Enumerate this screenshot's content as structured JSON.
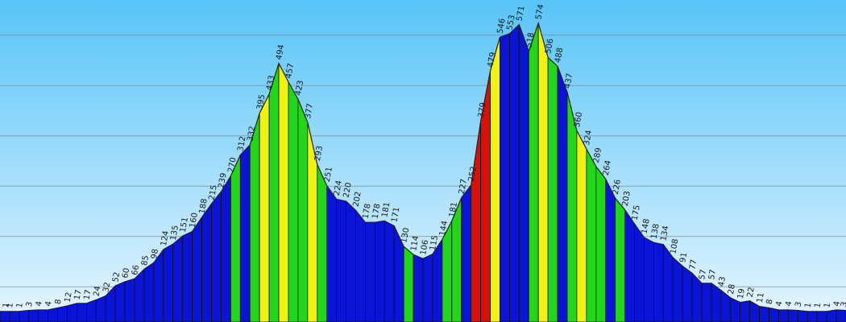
{
  "chart_data": {
    "type": "area",
    "title": "",
    "xlabel": "",
    "ylabel": "",
    "ylim": [
      -20,
      620
    ],
    "gridlines": [
      50,
      150,
      250,
      350,
      450,
      550
    ],
    "grid": true,
    "legend": "none",
    "colors": {
      "background_top": "#58c4f7",
      "background_bottom": "#e6f5ff",
      "grid": "#7f8e99",
      "low": "#0a14d6",
      "green": "#22d619",
      "yellow": "#f2f20f",
      "red": "#d9100a"
    },
    "points": [
      {
        "value": 1,
        "label": "1",
        "color": "low"
      },
      {
        "value": 1,
        "label": "1",
        "color": "low"
      },
      {
        "value": 1,
        "label": "1",
        "color": "low"
      },
      {
        "value": 3,
        "label": "3",
        "color": "low"
      },
      {
        "value": 4,
        "label": "4",
        "color": "low"
      },
      {
        "value": 4,
        "label": "4",
        "color": "low"
      },
      {
        "value": 8,
        "label": "8",
        "color": "low"
      },
      {
        "value": 12,
        "label": "12",
        "color": "low"
      },
      {
        "value": 17,
        "label": "17",
        "color": "low"
      },
      {
        "value": 17,
        "label": "17",
        "color": "low"
      },
      {
        "value": 24,
        "label": "24",
        "color": "low"
      },
      {
        "value": 32,
        "label": "32",
        "color": "low"
      },
      {
        "value": 52,
        "label": "52",
        "color": "low"
      },
      {
        "value": 60,
        "label": "60",
        "color": "low"
      },
      {
        "value": 66,
        "label": "66",
        "color": "low"
      },
      {
        "value": 85,
        "label": "85",
        "color": "low"
      },
      {
        "value": 98,
        "label": "98",
        "color": "low"
      },
      {
        "value": 124,
        "label": "124",
        "color": "low"
      },
      {
        "value": 135,
        "label": "135",
        "color": "low"
      },
      {
        "value": 151,
        "label": "151",
        "color": "low"
      },
      {
        "value": 160,
        "label": "160",
        "color": "low"
      },
      {
        "value": 188,
        "label": "188",
        "color": "low"
      },
      {
        "value": 215,
        "label": "215",
        "color": "low"
      },
      {
        "value": 239,
        "label": "239",
        "color": "low"
      },
      {
        "value": 270,
        "label": "270",
        "color": "green"
      },
      {
        "value": 312,
        "label": "312",
        "color": "low"
      },
      {
        "value": 332,
        "label": "332",
        "color": "green"
      },
      {
        "value": 395,
        "label": "395",
        "color": "yellow"
      },
      {
        "value": 433,
        "label": "433",
        "color": "green"
      },
      {
        "value": 494,
        "label": "494",
        "color": "yellow"
      },
      {
        "value": 457,
        "label": "457",
        "color": "green"
      },
      {
        "value": 423,
        "label": "423",
        "color": "green"
      },
      {
        "value": 377,
        "label": "377",
        "color": "yellow"
      },
      {
        "value": 293,
        "label": "293",
        "color": "green"
      },
      {
        "value": 251,
        "label": "251",
        "color": "low"
      },
      {
        "value": 224,
        "label": "224",
        "color": "low"
      },
      {
        "value": 220,
        "label": "220",
        "color": "low"
      },
      {
        "value": 202,
        "label": "202",
        "color": "low"
      },
      {
        "value": 178,
        "label": "178",
        "color": "low"
      },
      {
        "value": 178,
        "label": "178",
        "color": "low"
      },
      {
        "value": 181,
        "label": "181",
        "color": "low"
      },
      {
        "value": 171,
        "label": "171",
        "color": "low"
      },
      {
        "value": 130,
        "label": "130",
        "color": "green"
      },
      {
        "value": 114,
        "label": "114",
        "color": "low"
      },
      {
        "value": 106,
        "label": "106",
        "color": "low"
      },
      {
        "value": 115,
        "label": "115",
        "color": "low"
      },
      {
        "value": 144,
        "label": "144",
        "color": "green"
      },
      {
        "value": 181,
        "label": "181",
        "color": "green"
      },
      {
        "value": 227,
        "label": "227",
        "color": "low"
      },
      {
        "value": 252,
        "label": "252",
        "color": "red"
      },
      {
        "value": 379,
        "label": "379",
        "color": "red"
      },
      {
        "value": 479,
        "label": "479",
        "color": "yellow"
      },
      {
        "value": 546,
        "label": "546",
        "color": "low"
      },
      {
        "value": 553,
        "label": "553",
        "color": "low"
      },
      {
        "value": 571,
        "label": "571",
        "color": "low"
      },
      {
        "value": 518,
        "label": "518",
        "color": "green"
      },
      {
        "value": 574,
        "label": "574",
        "color": "yellow"
      },
      {
        "value": 506,
        "label": "506",
        "color": "green"
      },
      {
        "value": 488,
        "label": "488",
        "color": "low"
      },
      {
        "value": 437,
        "label": "437",
        "color": "green"
      },
      {
        "value": 360,
        "label": "360",
        "color": "yellow"
      },
      {
        "value": 324,
        "label": "324",
        "color": "green"
      },
      {
        "value": 289,
        "label": "289",
        "color": "green"
      },
      {
        "value": 264,
        "label": "264",
        "color": "low"
      },
      {
        "value": 226,
        "label": "226",
        "color": "green"
      },
      {
        "value": 203,
        "label": "203",
        "color": "low"
      },
      {
        "value": 175,
        "label": "175",
        "color": "low"
      },
      {
        "value": 148,
        "label": "148",
        "color": "low"
      },
      {
        "value": 138,
        "label": "138",
        "color": "low"
      },
      {
        "value": 134,
        "label": "134",
        "color": "low"
      },
      {
        "value": 108,
        "label": "108",
        "color": "low"
      },
      {
        "value": 91,
        "label": "91",
        "color": "low"
      },
      {
        "value": 77,
        "label": "77",
        "color": "low"
      },
      {
        "value": 57,
        "label": "57",
        "color": "low"
      },
      {
        "value": 57,
        "label": "57",
        "color": "low"
      },
      {
        "value": 43,
        "label": "43",
        "color": "low"
      },
      {
        "value": 28,
        "label": "28",
        "color": "low"
      },
      {
        "value": 19,
        "label": "19",
        "color": "low"
      },
      {
        "value": 22,
        "label": "22",
        "color": "low"
      },
      {
        "value": 11,
        "label": "11",
        "color": "low"
      },
      {
        "value": 8,
        "label": "8",
        "color": "low"
      },
      {
        "value": 4,
        "label": "4",
        "color": "low"
      },
      {
        "value": 4,
        "label": "4",
        "color": "low"
      },
      {
        "value": 3,
        "label": "3",
        "color": "low"
      },
      {
        "value": 1,
        "label": "1",
        "color": "low"
      },
      {
        "value": 1,
        "label": "1",
        "color": "low"
      },
      {
        "value": 1,
        "label": "1",
        "color": "low"
      },
      {
        "value": 4,
        "label": "4",
        "color": "low"
      },
      {
        "value": 3,
        "label": "3",
        "color": "low"
      }
    ]
  }
}
